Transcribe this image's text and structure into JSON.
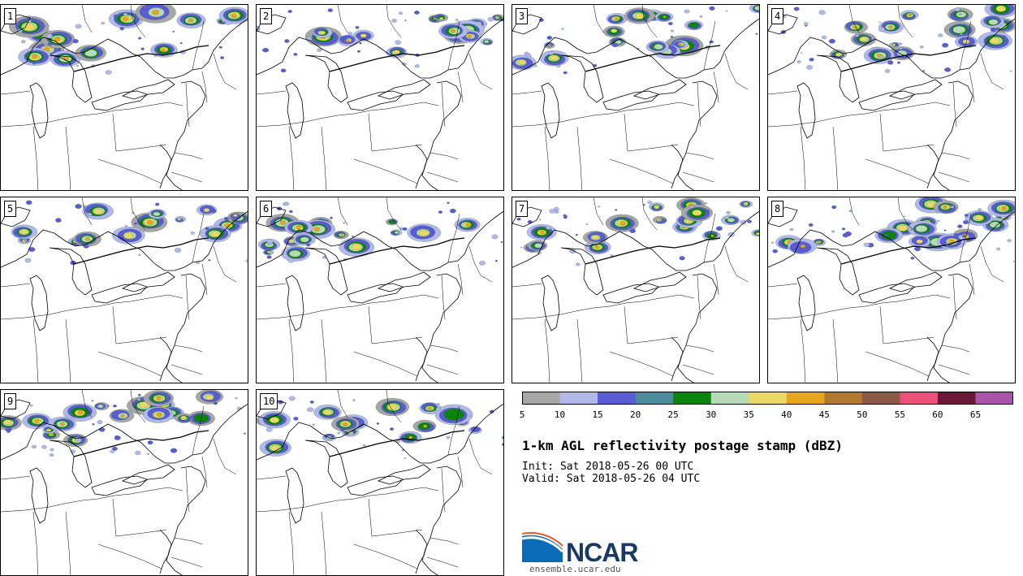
{
  "figure": {
    "title": "1-km AGL reflectivity postage stamp (dBZ)",
    "init_label": "Init:",
    "init_time": "Sat 2018-05-26 00 UTC",
    "valid_label": "Valid:",
    "valid_time": "Sat 2018-05-26 04 UTC",
    "org_logo_text": "NCAR",
    "site": "ensemble.ucar.edu"
  },
  "members": [
    {
      "label": "1",
      "intensity": 0.9
    },
    {
      "label": "2",
      "intensity": 0.8
    },
    {
      "label": "3",
      "intensity": 0.85
    },
    {
      "label": "4",
      "intensity": 0.75
    },
    {
      "label": "5",
      "intensity": 0.8
    },
    {
      "label": "6",
      "intensity": 0.9
    },
    {
      "label": "7",
      "intensity": 0.7
    },
    {
      "label": "8",
      "intensity": 0.75
    },
    {
      "label": "9",
      "intensity": 0.8
    },
    {
      "label": "10",
      "intensity": 0.85
    }
  ],
  "colorbar": {
    "units": "dBZ",
    "ticks": [
      "5",
      "10",
      "15",
      "20",
      "25",
      "30",
      "35",
      "40",
      "45",
      "50",
      "55",
      "60",
      "65"
    ],
    "colors": [
      "#a6a6a6",
      "#b3b8ea",
      "#5a5cd4",
      "#4c8c9a",
      "#0c840c",
      "#b6d9b6",
      "#e9d766",
      "#e8a61e",
      "#b07a30",
      "#8c5a44",
      "#ec5078",
      "#6a1838",
      "#a854a8"
    ]
  },
  "colors": {
    "map_lines": "#000000",
    "panel_border": "#000000",
    "logo_blue": "#0a6bb6",
    "logo_text": "#1a3a63"
  },
  "icons": {
    "logo": "ncar-swoosh-logo"
  }
}
